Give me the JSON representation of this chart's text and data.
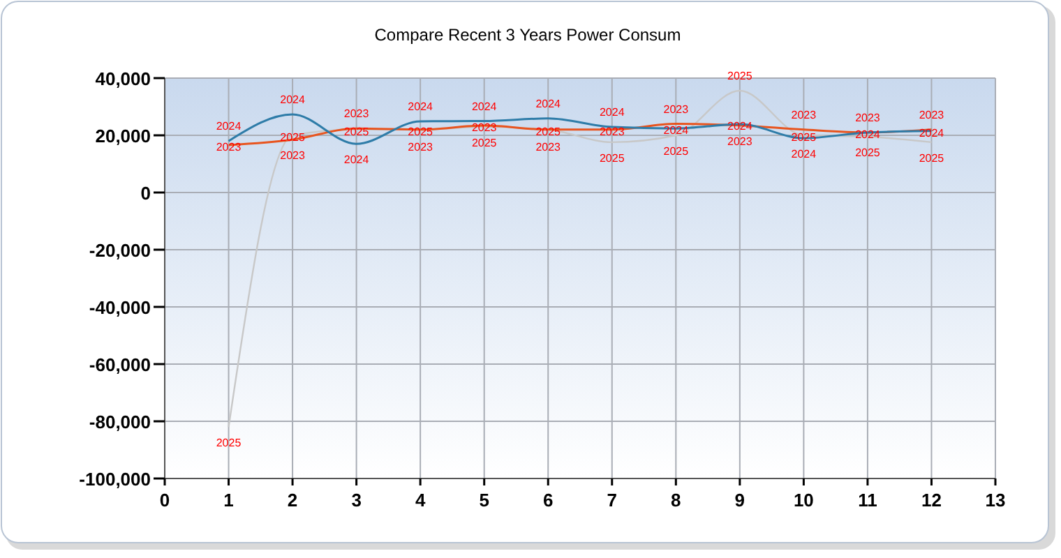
{
  "chart_data": {
    "type": "line",
    "title": "Compare Recent 3 Years Power Consum",
    "x": [
      1,
      2,
      3,
      4,
      5,
      6,
      7,
      8,
      9,
      10,
      11,
      12
    ],
    "series": [
      {
        "name": "2025",
        "color": "#c8c8c8",
        "values": [
          -82000,
          20000,
          22000,
          22000,
          23000,
          22000,
          17600,
          20000,
          35600,
          20000,
          19500,
          17600
        ]
      },
      {
        "name": "2023",
        "color": "#e8541e",
        "values": [
          16600,
          18500,
          22400,
          22000,
          23400,
          22000,
          22000,
          24000,
          23500,
          22000,
          21000,
          22000
        ]
      },
      {
        "name": "2024",
        "color": "#2e7ca8",
        "values": [
          18000,
          27300,
          17000,
          24900,
          25000,
          25900,
          22900,
          22400,
          23900,
          19000,
          21000,
          21500
        ]
      }
    ],
    "xlim": [
      0,
      13
    ],
    "xticks": [
      0,
      1,
      2,
      3,
      4,
      5,
      6,
      7,
      8,
      9,
      10,
      11,
      12,
      13
    ],
    "ylim": [
      -100000,
      40000
    ],
    "yticks": [
      {
        "value": -100000,
        "label": "-100,000"
      },
      {
        "value": -80000,
        "label": "-80,000"
      },
      {
        "value": -60000,
        "label": "-60,000"
      },
      {
        "value": -40000,
        "label": "-40,000"
      },
      {
        "value": -20000,
        "label": "-20,000"
      },
      {
        "value": 0,
        "label": "0"
      },
      {
        "value": 20000,
        "label": "20,000"
      },
      {
        "value": 40000,
        "label": "40,000"
      }
    ],
    "grid": true,
    "marker": "none",
    "line_style": "solid"
  }
}
